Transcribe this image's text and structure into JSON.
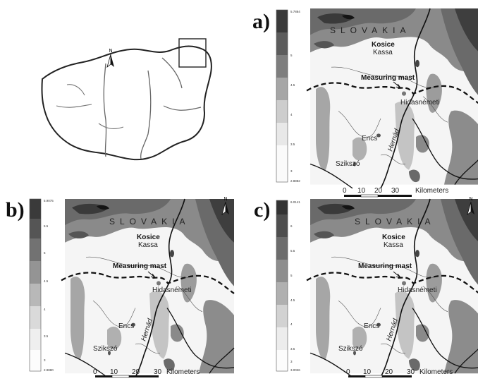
{
  "overview": {
    "north_label": "N"
  },
  "panels": [
    {
      "id": "a",
      "label": "a)",
      "legend": {
        "max": "5.7884",
        "min": "2.8882",
        "ticks": [
          "5",
          "4.5",
          "4",
          "3.5",
          "3"
        ]
      },
      "country": "SLOVAKIA",
      "city_bold": "Kosice",
      "city_alt": "Kassa",
      "mast": "Measuring mast",
      "town_h": "Hidasnémeti",
      "town_e": "Encs",
      "town_s": "Szikszó",
      "river": "Hernád",
      "north": "N",
      "scale": {
        "ticks": [
          "0",
          "10",
          "20",
          "30"
        ],
        "unit": "Kilometers"
      }
    },
    {
      "id": "b",
      "label": "b)",
      "legend": {
        "max": "5.9075",
        "min": "2.9880",
        "ticks": [
          "5.5",
          "5",
          "4.5",
          "4",
          "3.5",
          "3"
        ]
      },
      "country": "SLOVAKIA",
      "city_bold": "Kosice",
      "city_alt": "Kassa",
      "mast": "Measuring mast",
      "town_h": "Hidasnémeti",
      "town_e": "Encs",
      "town_s": "Szikszó",
      "river": "Hernád",
      "north": "N",
      "scale": {
        "ticks": [
          "0",
          "10",
          "20",
          "30"
        ],
        "unit": "Kilometers"
      }
    },
    {
      "id": "c",
      "label": "c)",
      "legend": {
        "max": "6.0141",
        "min": "3.0026",
        "ticks": [
          "6",
          "5.5",
          "5",
          "4.5",
          "4",
          "3.5",
          "3"
        ]
      },
      "country": "SLOVAKIA",
      "city_bold": "Kosice",
      "city_alt": "Kassa",
      "mast": "Measuring mast",
      "town_h": "Hidasnémeti",
      "town_e": "Encs",
      "town_s": "Szikszó",
      "river": "Hernád",
      "north": "N",
      "scale": {
        "ticks": [
          "0",
          "10",
          "20",
          "30"
        ],
        "unit": "Kilometers"
      }
    }
  ]
}
